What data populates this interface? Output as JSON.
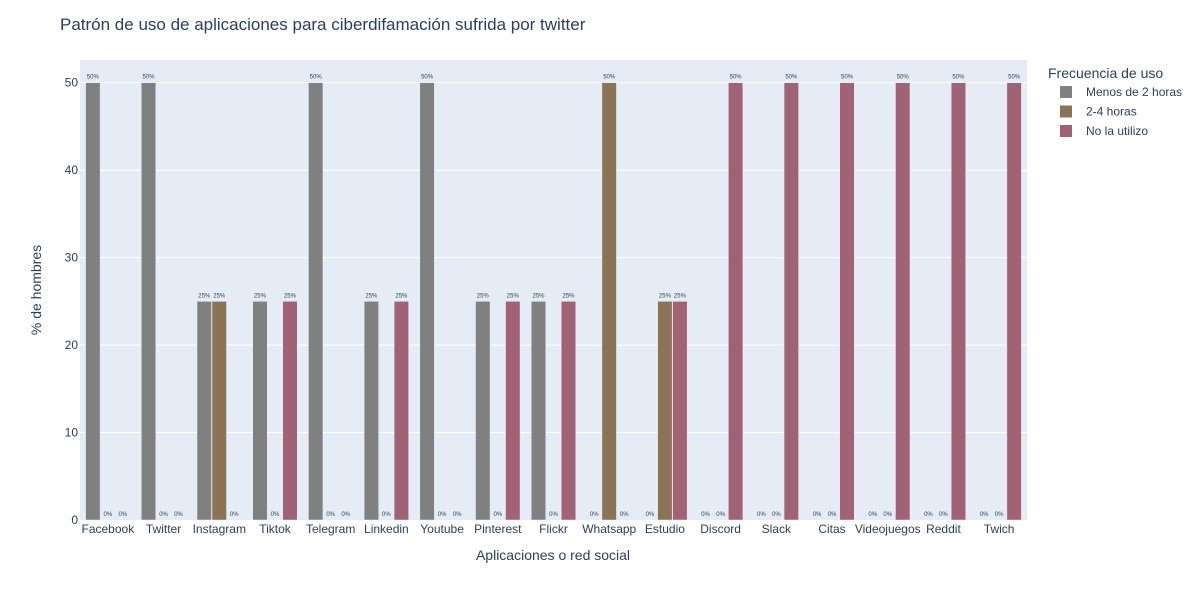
{
  "chart_data": {
    "type": "bar",
    "title": "Patrón de uso de aplicaciones para ciberdifamación sufrida por twitter",
    "xlabel": "Aplicaciones o red social",
    "ylabel": "% de hombres",
    "ylim": [
      0,
      52.6
    ],
    "yticks": [
      0,
      10,
      20,
      30,
      40,
      50
    ],
    "grid": true,
    "legend_title": "Frecuencia de uso",
    "legend_position": "top-right",
    "categories": [
      "Facebook",
      "Twitter",
      "Instagram",
      "Tiktok",
      "Telegram",
      "Linkedin",
      "Youtube",
      "Pinterest",
      "Flickr",
      "Whatsapp",
      "Estudio",
      "Discord",
      "Slack",
      "Citas",
      "Videojuegos",
      "Reddit",
      "Twich"
    ],
    "series": [
      {
        "name": "Menos de 2 horas",
        "color": "#808080",
        "values": [
          50,
          50,
          25,
          25,
          50,
          25,
          50,
          25,
          25,
          0,
          0,
          0,
          0,
          0,
          0,
          0,
          0
        ],
        "labels": [
          "50%",
          "50%",
          "25%",
          "25%",
          "50%",
          "25%",
          "50%",
          "25%",
          "25%",
          "0%",
          "0%",
          "0%",
          "0%",
          "0%",
          "0%",
          "0%",
          "0%"
        ]
      },
      {
        "name": "2-4 horas",
        "color": "#8b7355",
        "values": [
          0,
          0,
          25,
          0,
          0,
          0,
          0,
          0,
          0,
          50,
          25,
          0,
          0,
          0,
          0,
          0,
          0
        ],
        "labels": [
          "0%",
          "0%",
          "25%",
          "0%",
          "0%",
          "0%",
          "0%",
          "0%",
          "0%",
          "50%",
          "25%",
          "0%",
          "0%",
          "0%",
          "0%",
          "0%",
          "0%"
        ]
      },
      {
        "name": "No la utilizo",
        "color": "#a16275",
        "values": [
          0,
          0,
          0,
          25,
          0,
          25,
          0,
          25,
          25,
          0,
          25,
          50,
          50,
          50,
          50,
          50,
          50
        ],
        "labels": [
          "0%",
          "0%",
          "0%",
          "25%",
          "0%",
          "25%",
          "0%",
          "25%",
          "25%",
          "0%",
          "25%",
          "50%",
          "50%",
          "50%",
          "50%",
          "50%",
          "50%"
        ]
      }
    ]
  }
}
